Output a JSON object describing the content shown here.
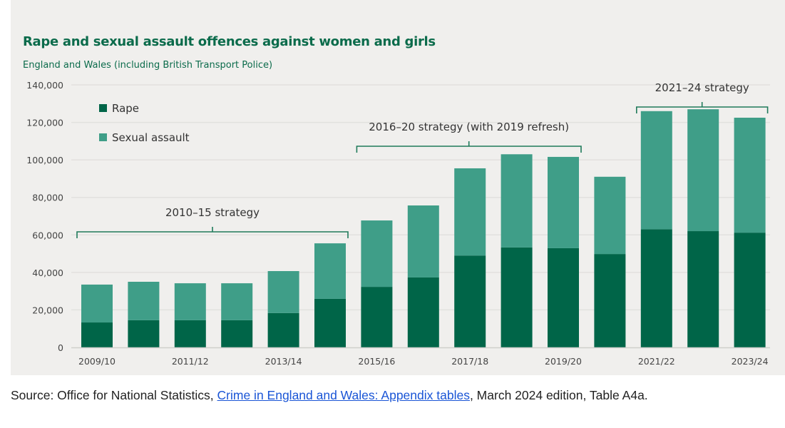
{
  "chart_data": {
    "type": "bar",
    "stacked": true,
    "title": "Rape and sexual assault offences against women and girls",
    "subtitle": "England and Wales (including British Transport Police)",
    "categories": [
      "2009/10",
      "2010/11",
      "2011/12",
      "2012/13",
      "2013/14",
      "2014/15",
      "2015/16",
      "2016/17",
      "2017/18",
      "2018/19",
      "2019/20",
      "2020/21",
      "2021/22",
      "2022/23",
      "2023/24"
    ],
    "tick_labels": [
      "2009/10",
      "2011/12",
      "2013/14",
      "2015/16",
      "2017/18",
      "2019/20",
      "2021/22",
      "2023/24"
    ],
    "series": [
      {
        "name": "Rape",
        "color": "#006548",
        "values": [
          13300,
          14500,
          14500,
          14500,
          18300,
          25900,
          32300,
          37300,
          49000,
          53300,
          52900,
          49800,
          63000,
          62000,
          61200
        ]
      },
      {
        "name": "Sexual assault",
        "color": "#3f9e88",
        "values": [
          20200,
          20500,
          19700,
          19700,
          22400,
          29600,
          35400,
          38400,
          46500,
          49700,
          48700,
          41200,
          63000,
          65000,
          61300
        ]
      }
    ],
    "ylim": [
      0,
      140000
    ],
    "yticks": [
      "0",
      "20,000",
      "40,000",
      "60,000",
      "80,000",
      "100,000",
      "120,000",
      "140,000"
    ],
    "grid": true,
    "legend": "top-left",
    "annotations": [
      {
        "label": "2010–15 strategy",
        "from": "2009/10",
        "to": "2014/15"
      },
      {
        "label": "2016–20 strategy (with 2019 refresh)",
        "from": "2015/16",
        "to": "2019/20"
      },
      {
        "label": "2021–24 strategy",
        "from": "2021/22",
        "to": "2023/24"
      }
    ]
  },
  "source": {
    "prefix": "Source: Office for National Statistics, ",
    "link": "Crime in England and Wales: Appendix tables",
    "suffix": ", March 2024 edition, Table A4a."
  }
}
